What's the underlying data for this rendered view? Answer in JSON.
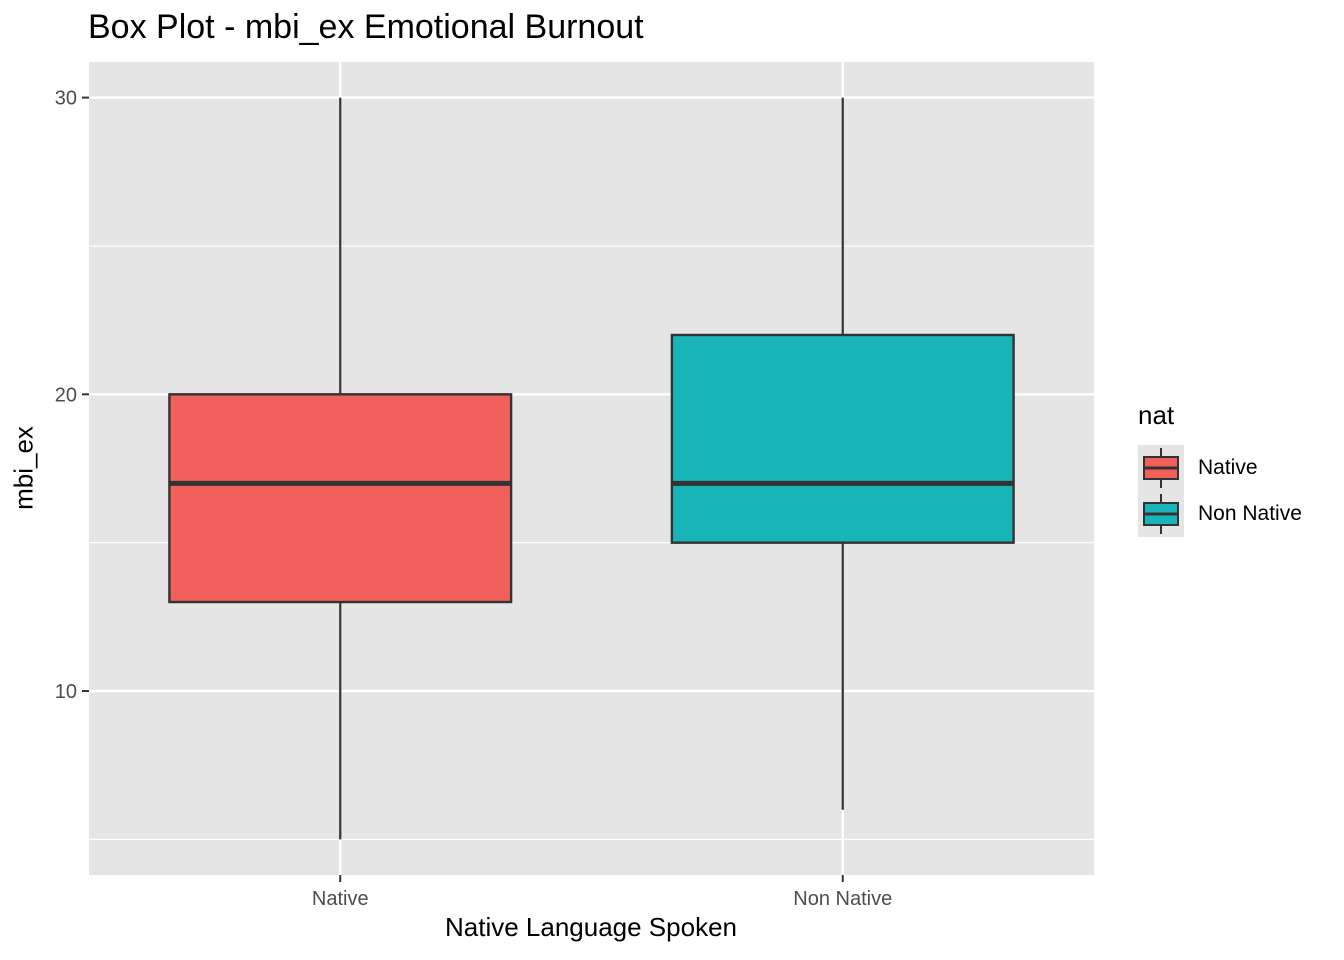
{
  "chart_data": {
    "type": "box",
    "title": "Box Plot - mbi_ex Emotional Burnout",
    "xlabel": "Native Language Spoken",
    "ylabel": "mbi_ex",
    "categories": [
      "Native",
      "Non Native"
    ],
    "ylim": [
      3.8,
      31.2
    ],
    "yticks": [
      10,
      20,
      30
    ],
    "grid": true,
    "legend": {
      "title": "nat",
      "placement": "right",
      "entries": [
        "Native",
        "Non Native"
      ]
    },
    "series": [
      {
        "name": "Native",
        "color": "#F2605C",
        "min": 5,
        "q1": 13,
        "median": 17,
        "q3": 20,
        "max": 30
      },
      {
        "name": "Non Native",
        "color": "#19B4B8",
        "min": 6,
        "q1": 15,
        "median": 17,
        "q3": 22,
        "max": 30
      }
    ]
  }
}
